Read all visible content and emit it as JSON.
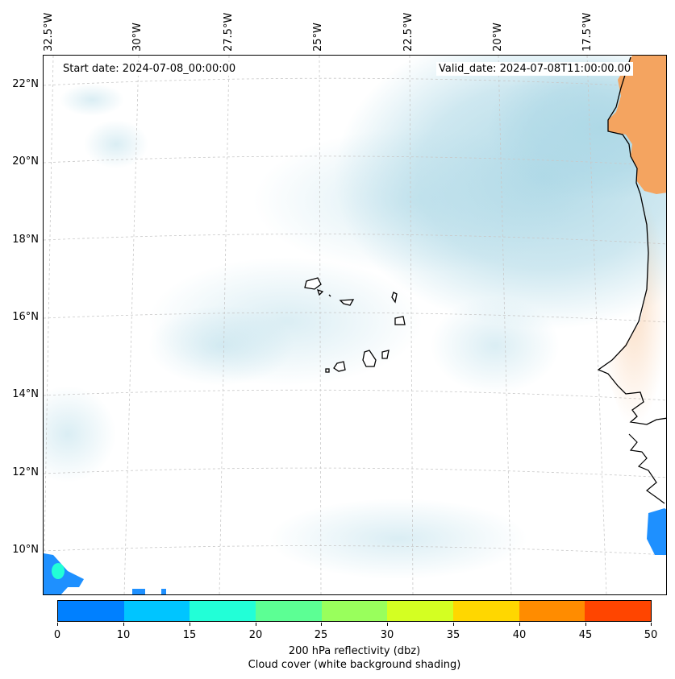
{
  "map": {
    "start_date": "Start date: 2024-07-08_00:00:00",
    "valid_date": "Valid_date: 2024-07-08T11:00:00.00",
    "longitude_labels": [
      "32.5°W",
      "30°W",
      "27.5°W",
      "25°W",
      "22.5°W",
      "20°W",
      "17.5°W"
    ],
    "latitude_labels": [
      "22°N",
      "20°N",
      "18°N",
      "16°N",
      "14°N",
      "12°N",
      "10°N"
    ],
    "colors": {
      "land_fill": "#f4a460",
      "cloud_shading": "#add8e6",
      "coastline": "#000000",
      "gridline": "#c8c8c8"
    }
  },
  "colorbar": {
    "ticks": [
      "0",
      "10",
      "15",
      "20",
      "25",
      "30",
      "35",
      "40",
      "45",
      "50"
    ],
    "colors": [
      "#0080ff",
      "#00c5ff",
      "#22ffd7",
      "#5cff94",
      "#99ff5c",
      "#d4ff22",
      "#ffd700",
      "#ff8c00",
      "#ff4500"
    ],
    "label_line1": "200 hPa reflectivity (dbz)",
    "label_line2": "Cloud cover (white background shading)"
  }
}
